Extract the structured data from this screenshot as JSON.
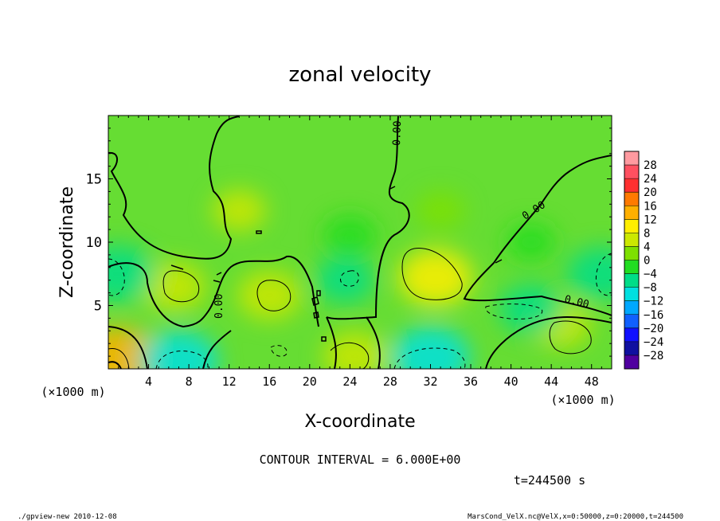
{
  "chart_data": {
    "type": "heatmap",
    "title": "zonal velocity",
    "xlabel": "X-coordinate",
    "ylabel": "Z-coordinate",
    "x_unit_label": "(×1000 m)",
    "z_unit_label": "(×1000 m)",
    "xlim": [
      0,
      50
    ],
    "ylim": [
      0,
      20
    ],
    "x_ticks": [
      4,
      8,
      12,
      16,
      20,
      24,
      28,
      32,
      36,
      40,
      44,
      48
    ],
    "y_ticks": [
      5,
      10,
      15
    ],
    "colorbar": {
      "levels": [
        28,
        24,
        20,
        16,
        12,
        8,
        4,
        0,
        -4,
        -8,
        -12,
        -16,
        -20,
        -24,
        -28
      ],
      "level_labels": [
        "28",
        "24",
        "20",
        "16",
        "12",
        "8",
        "4",
        "0",
        "−4",
        "−8",
        "−12",
        "−16",
        "−20",
        "−24",
        "−28"
      ],
      "colors": [
        "#ff9aa0",
        "#ff5060",
        "#ff3030",
        "#ff7a00",
        "#ffb000",
        "#ffee00",
        "#cce800",
        "#7ee000",
        "#22dd22",
        "#00dd88",
        "#00e0e0",
        "#00a8ff",
        "#1060ff",
        "#1010ff",
        "#1010a0",
        "#5000a0"
      ]
    },
    "contour_label": "0.00",
    "contour_interval_text": "CONTOUR INTERVAL = 6.000E+00",
    "time_text": "t=244500 s",
    "features": [
      {
        "x": 6.5,
        "z": 6.5,
        "value": 6,
        "sign": "positive"
      },
      {
        "x": 16,
        "z": 5.8,
        "value": 6,
        "sign": "positive"
      },
      {
        "x": 32.5,
        "z": 7.2,
        "value": 8,
        "sign": "positive"
      },
      {
        "x": 45,
        "z": 3.5,
        "value": 5,
        "sign": "positive"
      },
      {
        "x": 24.5,
        "z": 1.0,
        "value": 6,
        "sign": "positive"
      },
      {
        "x": 1,
        "z": 0.7,
        "value": 13,
        "sign": "positive"
      },
      {
        "x": 1,
        "z": 7.5,
        "value": -8,
        "sign": "negative"
      },
      {
        "x": 7,
        "z": 0.6,
        "value": -9,
        "sign": "negative"
      },
      {
        "x": 32,
        "z": 0.9,
        "value": -9,
        "sign": "negative"
      },
      {
        "x": 42,
        "z": 4.7,
        "value": -6,
        "sign": "negative"
      },
      {
        "x": 49,
        "z": 7.5,
        "value": -7,
        "sign": "negative"
      },
      {
        "x": 23.5,
        "z": 7.0,
        "value": -5,
        "sign": "negative"
      },
      {
        "x": 13,
        "z": 12.5,
        "value": 4,
        "sign": "positive"
      },
      {
        "x": 33,
        "z": 12.5,
        "value": 3,
        "sign": "positive"
      },
      {
        "x": 24,
        "z": 10.5,
        "value": -4,
        "sign": "negative"
      },
      {
        "x": 42,
        "z": 10.0,
        "value": -3,
        "sign": "negative"
      }
    ]
  },
  "footer": {
    "left": "./gpview-new   2010-12-08",
    "right": "MarsCond_VelX.nc@VelX,x=0:50000,z=0:20000,t=244500"
  }
}
